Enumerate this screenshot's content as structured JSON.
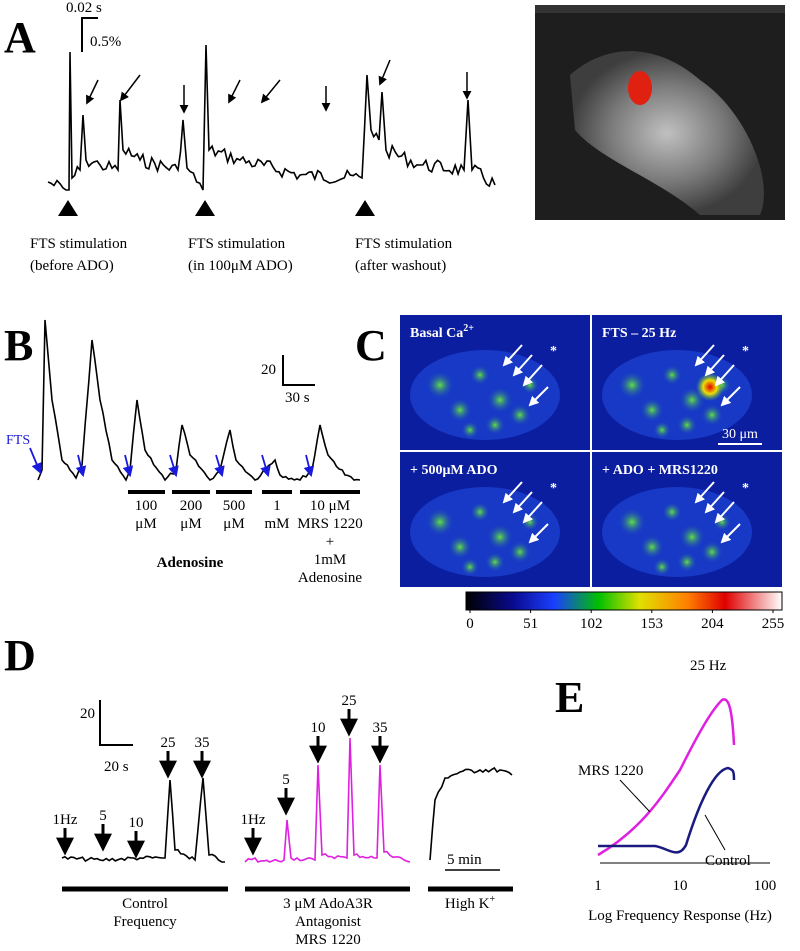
{
  "panel_a": {
    "label": "A",
    "scale_time": "0.02 s",
    "scale_amp": "0.5%",
    "captions": [
      [
        "FTS stimulation",
        "(before ADO)"
      ],
      [
        "FTS stimulation",
        "(in 100μM ADO)"
      ],
      [
        "FTS stimulation",
        "(after washout)"
      ]
    ]
  },
  "panel_b": {
    "label": "B",
    "scale_amp": "20",
    "scale_time": "30 s",
    "stim": "FTS",
    "doses": [
      [
        "100",
        "μM"
      ],
      [
        "200",
        "μM"
      ],
      [
        "500",
        "μM"
      ],
      [
        "1",
        "mM"
      ]
    ],
    "dose_group": "Adenosine",
    "antagonist": [
      "10 μM",
      "MRS 1220",
      "+",
      "1mM",
      "Adenosine"
    ]
  },
  "panel_c": {
    "label": "C",
    "quadrants": {
      "basal": "Basal Ca",
      "basal_sup": "2+",
      "fts": "FTS – 25 Hz",
      "ado": "+ 500μM ADO",
      "mrs": "+ ADO + MRS1220"
    },
    "scale": "30 μm",
    "colorbar_ticks": [
      0,
      51,
      102,
      153,
      204,
      255
    ]
  },
  "panel_d": {
    "label": "D",
    "scale_amp": "20",
    "scale_time": "20 s",
    "control_freqs": [
      "1Hz",
      "5",
      "10",
      "25",
      "35"
    ],
    "mrs_freqs": [
      "1Hz",
      "5",
      "10",
      "25",
      "35"
    ],
    "scale_time2": "5 min",
    "control_label": [
      "Control",
      "Frequency"
    ],
    "mrs_label": [
      "3 μM AdoA3R",
      "Antagonist",
      "MRS 1220"
    ],
    "highk": "High K",
    "highk_sup": "+"
  },
  "panel_e": {
    "label": "E",
    "peak": "25 Hz",
    "mrs": "MRS 1220",
    "control": "Control",
    "x_ticks": [
      "1",
      "10",
      "100"
    ],
    "x_axis": "Log Frequency Response (Hz)"
  }
}
